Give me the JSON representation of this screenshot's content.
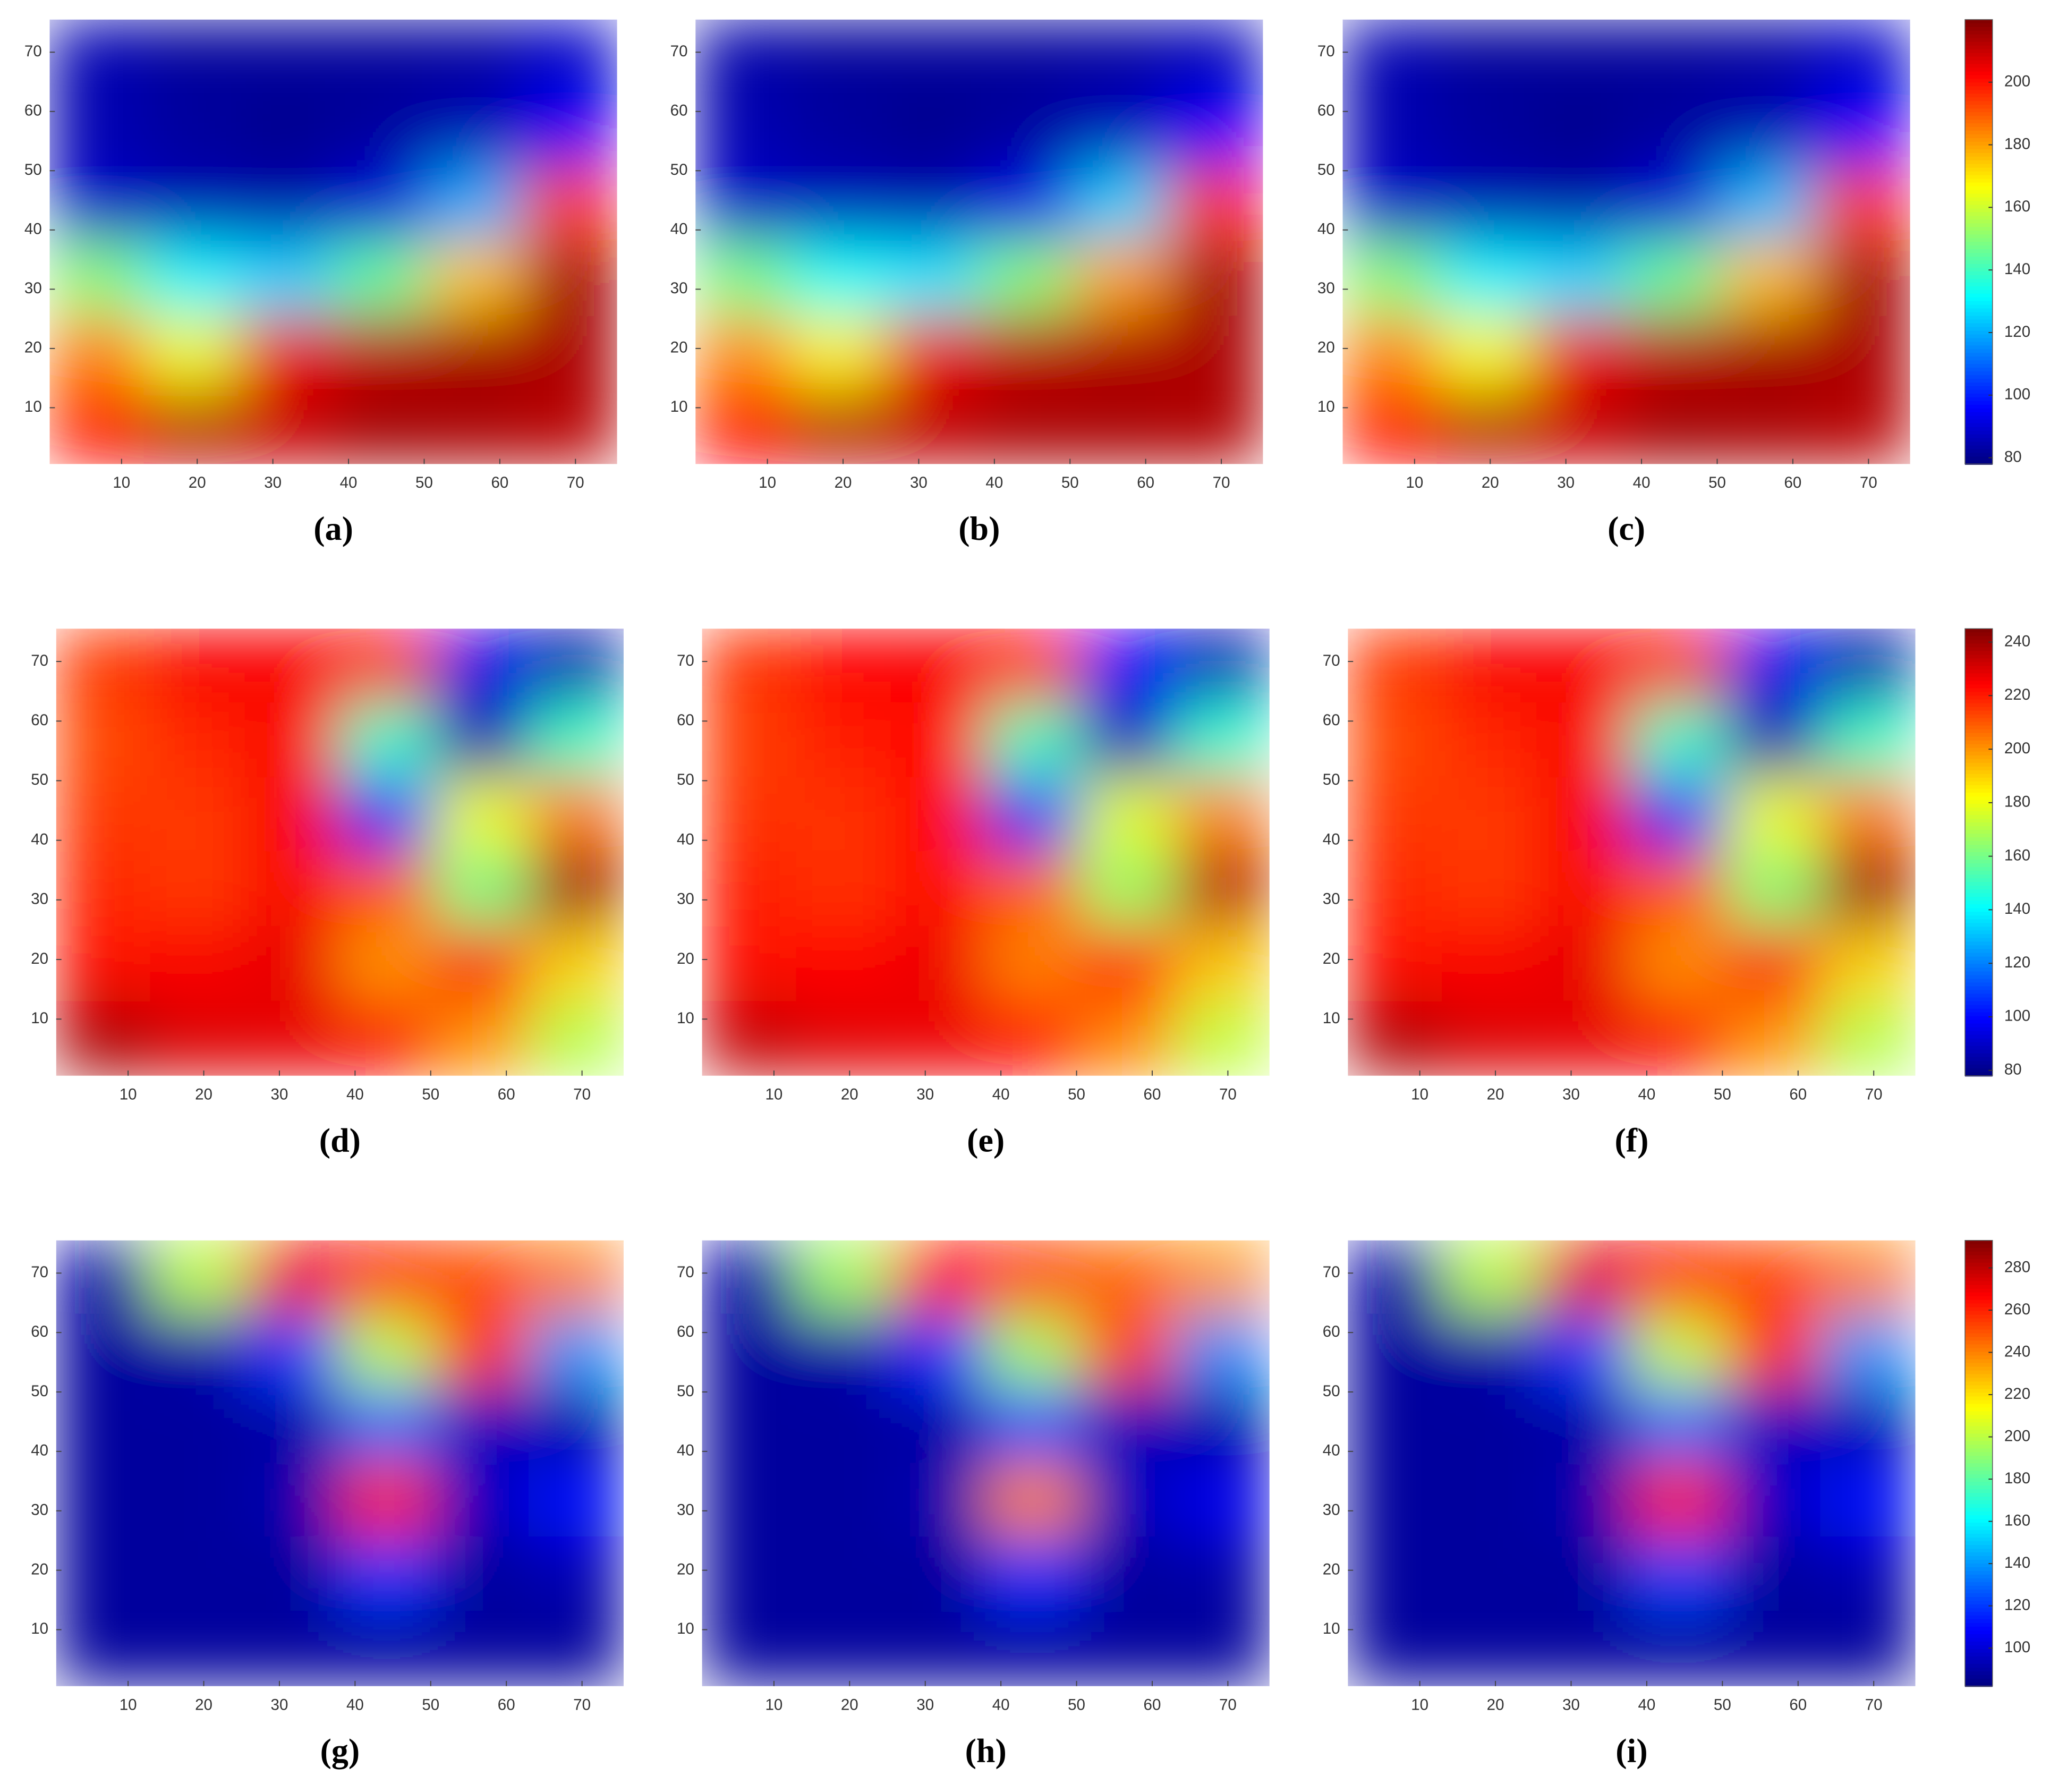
{
  "chart_data": [
    {
      "type": "heatmap",
      "label": "(a)",
      "colormap": "jet",
      "xlim": [
        0.5,
        75.5
      ],
      "ylim": [
        0.5,
        75.5
      ],
      "xticks": [
        10,
        20,
        30,
        40,
        50,
        60,
        70
      ],
      "yticks": [
        10,
        20,
        30,
        40,
        50,
        60,
        70
      ],
      "clim": [
        78,
        220
      ],
      "z": [
        [
          85,
          82,
          82,
          82,
          83,
          88
        ],
        [
          85,
          82,
          80,
          82,
          85,
          95
        ],
        [
          88,
          85,
          84,
          90,
          120,
          195
        ],
        [
          150,
          130,
          125,
          145,
          175,
          215
        ],
        [
          185,
          165,
          205,
          212,
          215,
          214
        ],
        [
          200,
          212,
          210,
          215,
          214,
          212
        ]
      ]
    },
    {
      "type": "heatmap",
      "label": "(b)",
      "colormap": "jet",
      "xlim": [
        0.5,
        75.5
      ],
      "ylim": [
        0.5,
        75.5
      ],
      "xticks": [
        10,
        20,
        30,
        40,
        50,
        60,
        70
      ],
      "yticks": [
        10,
        20,
        30,
        40,
        50,
        60,
        70
      ],
      "clim": [
        78,
        220
      ],
      "z": [
        [
          84,
          82,
          82,
          82,
          83,
          86
        ],
        [
          85,
          82,
          80,
          82,
          86,
          96
        ],
        [
          88,
          86,
          85,
          92,
          125,
          198
        ],
        [
          148,
          132,
          128,
          150,
          180,
          215
        ],
        [
          183,
          168,
          205,
          212,
          214,
          214
        ],
        [
          202,
          212,
          211,
          214,
          214,
          213
        ]
      ]
    },
    {
      "type": "heatmap",
      "label": "(c)",
      "colormap": "jet",
      "xlim": [
        0.5,
        75.5
      ],
      "ylim": [
        0.5,
        75.5
      ],
      "xticks": [
        10,
        20,
        30,
        40,
        50,
        60,
        70
      ],
      "yticks": [
        10,
        20,
        30,
        40,
        50,
        60,
        70
      ],
      "clim": [
        78,
        220
      ],
      "colorbar_ticks": [
        80,
        100,
        120,
        140,
        160,
        180,
        200
      ],
      "z": [
        [
          85,
          82,
          82,
          82,
          83,
          88
        ],
        [
          85,
          82,
          80,
          82,
          85,
          96
        ],
        [
          88,
          85,
          84,
          90,
          122,
          196
        ],
        [
          150,
          130,
          126,
          146,
          176,
          215
        ],
        [
          184,
          166,
          205,
          212,
          215,
          214
        ],
        [
          200,
          212,
          210,
          215,
          214,
          212
        ]
      ]
    },
    {
      "type": "heatmap",
      "label": "(d)",
      "colormap": "jet",
      "xlim": [
        0.5,
        75.5
      ],
      "ylim": [
        0.5,
        75.5
      ],
      "xticks": [
        10,
        20,
        30,
        40,
        50,
        60,
        70
      ],
      "yticks": [
        10,
        20,
        30,
        40,
        50,
        60,
        70
      ],
      "clim": [
        78,
        245
      ],
      "z": [
        [
          215,
          225,
          225,
          225,
          95,
          85
        ],
        [
          212,
          218,
          225,
          150,
          85,
          150
        ],
        [
          215,
          215,
          225,
          100,
          180,
          205
        ],
        [
          218,
          215,
          225,
          210,
          160,
          240
        ],
        [
          222,
          225,
          228,
          200,
          225,
          190
        ],
        [
          238,
          230,
          228,
          225,
          200,
          170
        ]
      ]
    },
    {
      "type": "heatmap",
      "label": "(e)",
      "colormap": "jet",
      "xlim": [
        0.5,
        75.5
      ],
      "ylim": [
        0.5,
        75.5
      ],
      "xticks": [
        10,
        20,
        30,
        40,
        50,
        60,
        70
      ],
      "yticks": [
        10,
        20,
        30,
        40,
        50,
        60,
        70
      ],
      "clim": [
        78,
        245
      ],
      "z": [
        [
          216,
          224,
          225,
          224,
          98,
          86
        ],
        [
          214,
          219,
          224,
          152,
          87,
          148
        ],
        [
          216,
          216,
          224,
          104,
          178,
          203
        ],
        [
          219,
          216,
          224,
          208,
          165,
          236
        ],
        [
          222,
          224,
          227,
          203,
          222,
          192
        ],
        [
          234,
          229,
          227,
          224,
          202,
          172
        ]
      ]
    },
    {
      "type": "heatmap",
      "label": "(f)",
      "colormap": "jet",
      "xlim": [
        0.5,
        75.5
      ],
      "ylim": [
        0.5,
        75.5
      ],
      "xticks": [
        10,
        20,
        30,
        40,
        50,
        60,
        70
      ],
      "yticks": [
        10,
        20,
        30,
        40,
        50,
        60,
        70
      ],
      "clim": [
        78,
        245
      ],
      "colorbar_ticks": [
        80,
        100,
        120,
        140,
        160,
        180,
        200,
        220,
        240
      ],
      "z": [
        [
          215,
          225,
          225,
          225,
          96,
          85
        ],
        [
          212,
          218,
          225,
          150,
          85,
          150
        ],
        [
          215,
          215,
          225,
          101,
          180,
          205
        ],
        [
          218,
          215,
          225,
          210,
          162,
          240
        ],
        [
          222,
          225,
          228,
          201,
          225,
          190
        ],
        [
          237,
          230,
          228,
          225,
          200,
          170
        ]
      ]
    },
    {
      "type": "heatmap",
      "label": "(g)",
      "colormap": "jet",
      "xlim": [
        0.5,
        75.5
      ],
      "ylim": [
        0.5,
        75.5
      ],
      "xticks": [
        10,
        20,
        30,
        40,
        50,
        60,
        70
      ],
      "yticks": [
        10,
        20,
        30,
        40,
        50,
        60,
        70
      ],
      "clim": [
        82,
        293
      ],
      "z": [
        [
          90,
          200,
          270,
          260,
          250,
          240
        ],
        [
          88,
          90,
          120,
          200,
          260,
          140
        ],
        [
          88,
          88,
          90,
          130,
          95,
          90
        ],
        [
          88,
          88,
          92,
          260,
          95,
          110
        ],
        [
          88,
          88,
          88,
          120,
          88,
          92
        ],
        [
          88,
          88,
          88,
          88,
          88,
          88
        ]
      ]
    },
    {
      "type": "heatmap",
      "label": "(h)",
      "colormap": "jet",
      "xlim": [
        0.5,
        75.5
      ],
      "ylim": [
        0.5,
        75.5
      ],
      "xticks": [
        10,
        20,
        30,
        40,
        50,
        60,
        70
      ],
      "yticks": [
        10,
        20,
        30,
        40,
        50,
        60,
        70
      ],
      "clim": [
        82,
        293
      ],
      "z": [
        [
          90,
          195,
          265,
          255,
          245,
          235
        ],
        [
          88,
          90,
          118,
          195,
          255,
          138
        ],
        [
          88,
          88,
          90,
          125,
          94,
          90
        ],
        [
          88,
          88,
          92,
          240,
          94,
          105
        ],
        [
          88,
          88,
          88,
          118,
          88,
          90
        ],
        [
          88,
          88,
          88,
          88,
          88,
          88
        ]
      ]
    },
    {
      "type": "heatmap",
      "label": "(i)",
      "colormap": "jet",
      "xlim": [
        0.5,
        75.5
      ],
      "ylim": [
        0.5,
        75.5
      ],
      "xticks": [
        10,
        20,
        30,
        40,
        50,
        60,
        70
      ],
      "yticks": [
        10,
        20,
        30,
        40,
        50,
        60,
        70
      ],
      "clim": [
        82,
        293
      ],
      "colorbar_ticks": [
        100,
        120,
        140,
        160,
        180,
        200,
        220,
        240,
        260,
        280
      ],
      "z": [
        [
          90,
          200,
          272,
          262,
          252,
          240
        ],
        [
          88,
          90,
          120,
          202,
          262,
          140
        ],
        [
          88,
          88,
          90,
          130,
          95,
          92
        ],
        [
          88,
          88,
          92,
          262,
          96,
          110
        ],
        [
          88,
          88,
          88,
          122,
          88,
          92
        ],
        [
          88,
          88,
          88,
          88,
          88,
          88
        ]
      ]
    }
  ]
}
